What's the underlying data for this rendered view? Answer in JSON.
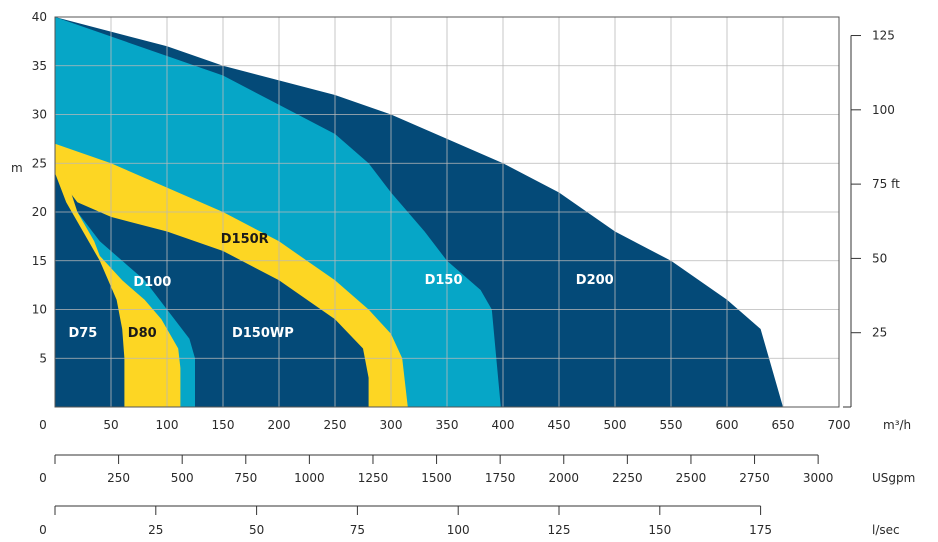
{
  "chart_data": {
    "type": "area",
    "xlabel": "m³/h",
    "ylabel": "m",
    "xlim": [
      0,
      700
    ],
    "ylim": [
      0,
      40
    ],
    "x_ticks": [
      0,
      50,
      100,
      150,
      200,
      250,
      300,
      350,
      400,
      450,
      500,
      550,
      600,
      650,
      700
    ],
    "y_ticks": [
      5,
      10,
      15,
      20,
      25,
      30,
      35,
      40
    ],
    "grid": true,
    "right_axis": {
      "unit": "ft",
      "ticks": [
        {
          "value": 25,
          "label": "25"
        },
        {
          "value": 50,
          "label": "50"
        },
        {
          "value": 75,
          "label": "75 ft"
        },
        {
          "value": 100,
          "label": "100"
        },
        {
          "value": 125,
          "label": "125"
        }
      ]
    },
    "secondary_axes": [
      {
        "unit": "USgpm",
        "ticks": [
          0,
          250,
          500,
          750,
          1000,
          1250,
          1500,
          1750,
          2000,
          2250,
          2500,
          2750,
          3000
        ]
      },
      {
        "unit": "l/sec",
        "ticks": [
          0,
          25,
          50,
          75,
          100,
          125,
          150,
          175
        ]
      }
    ],
    "colors": {
      "dark": "#044a78",
      "light": "#06a6c7",
      "yellow": "#fdd623"
    },
    "series": [
      {
        "name": "D200",
        "color": "#044a78",
        "label_at": [
          465,
          12.6
        ],
        "label_color": "#ffffff",
        "upper": [
          [
            0,
            40
          ],
          [
            100,
            37
          ],
          [
            150,
            35
          ],
          [
            250,
            32
          ],
          [
            300,
            30
          ],
          [
            350,
            27.5
          ],
          [
            400,
            25
          ],
          [
            450,
            22
          ],
          [
            500,
            18
          ],
          [
            550,
            15
          ],
          [
            600,
            11
          ],
          [
            630,
            8
          ],
          [
            650,
            0
          ]
        ]
      },
      {
        "name": "D150",
        "color": "#06a6c7",
        "label_at": [
          330,
          12.6
        ],
        "label_color": "#ffffff",
        "upper": [
          [
            0,
            40
          ],
          [
            100,
            36
          ],
          [
            150,
            34
          ],
          [
            200,
            31
          ],
          [
            250,
            28
          ],
          [
            280,
            25
          ],
          [
            300,
            22
          ],
          [
            330,
            18
          ],
          [
            350,
            15
          ],
          [
            380,
            12
          ],
          [
            390,
            10
          ],
          [
            398,
            0
          ]
        ]
      },
      {
        "name": "D150R",
        "color": "#fdd623",
        "label_at": [
          148,
          16.8
        ],
        "label_color": "#1a1a1a",
        "upper": [
          [
            0,
            27
          ],
          [
            50,
            25
          ],
          [
            100,
            22.5
          ],
          [
            150,
            20
          ],
          [
            200,
            17
          ],
          [
            250,
            13
          ],
          [
            280,
            10
          ],
          [
            300,
            7.5
          ],
          [
            310,
            5
          ],
          [
            315,
            0
          ]
        ]
      },
      {
        "name": "D150WP",
        "color": "#044a78",
        "label_at": [
          158,
          7.2
        ],
        "label_color": "#ffffff",
        "upper": [
          [
            0,
            24
          ],
          [
            20,
            21
          ],
          [
            50,
            19.5
          ],
          [
            100,
            18
          ],
          [
            150,
            16
          ],
          [
            200,
            13
          ],
          [
            250,
            9
          ],
          [
            275,
            6
          ],
          [
            280,
            3
          ],
          [
            280,
            0
          ]
        ]
      },
      {
        "name": "D100",
        "color": "#06a6c7",
        "label_at": [
          70,
          12.4
        ],
        "label_color": "#ffffff",
        "upper": [
          [
            0,
            25
          ],
          [
            20,
            20
          ],
          [
            40,
            17
          ],
          [
            60,
            15
          ],
          [
            80,
            13
          ],
          [
            100,
            10
          ],
          [
            120,
            7
          ],
          [
            125,
            5
          ],
          [
            125,
            0
          ]
        ]
      },
      {
        "name": "D80",
        "color": "#fdd623",
        "label_at": [
          65,
          7.2
        ],
        "label_color": "#1a1a1a",
        "upper": [
          [
            0,
            27
          ],
          [
            20,
            20
          ],
          [
            35,
            17
          ],
          [
            40,
            15.5
          ],
          [
            60,
            13
          ],
          [
            80,
            11
          ],
          [
            95,
            9
          ],
          [
            110,
            6
          ],
          [
            112,
            4
          ],
          [
            112,
            0
          ]
        ]
      },
      {
        "name": "D75",
        "color": "#044a78",
        "label_at": [
          12,
          7.2
        ],
        "label_color": "#ffffff",
        "upper": [
          [
            0,
            24
          ],
          [
            10,
            21
          ],
          [
            25,
            18
          ],
          [
            40,
            15
          ],
          [
            55,
            11
          ],
          [
            60,
            8
          ],
          [
            62,
            5
          ],
          [
            62,
            0
          ]
        ]
      }
    ]
  }
}
